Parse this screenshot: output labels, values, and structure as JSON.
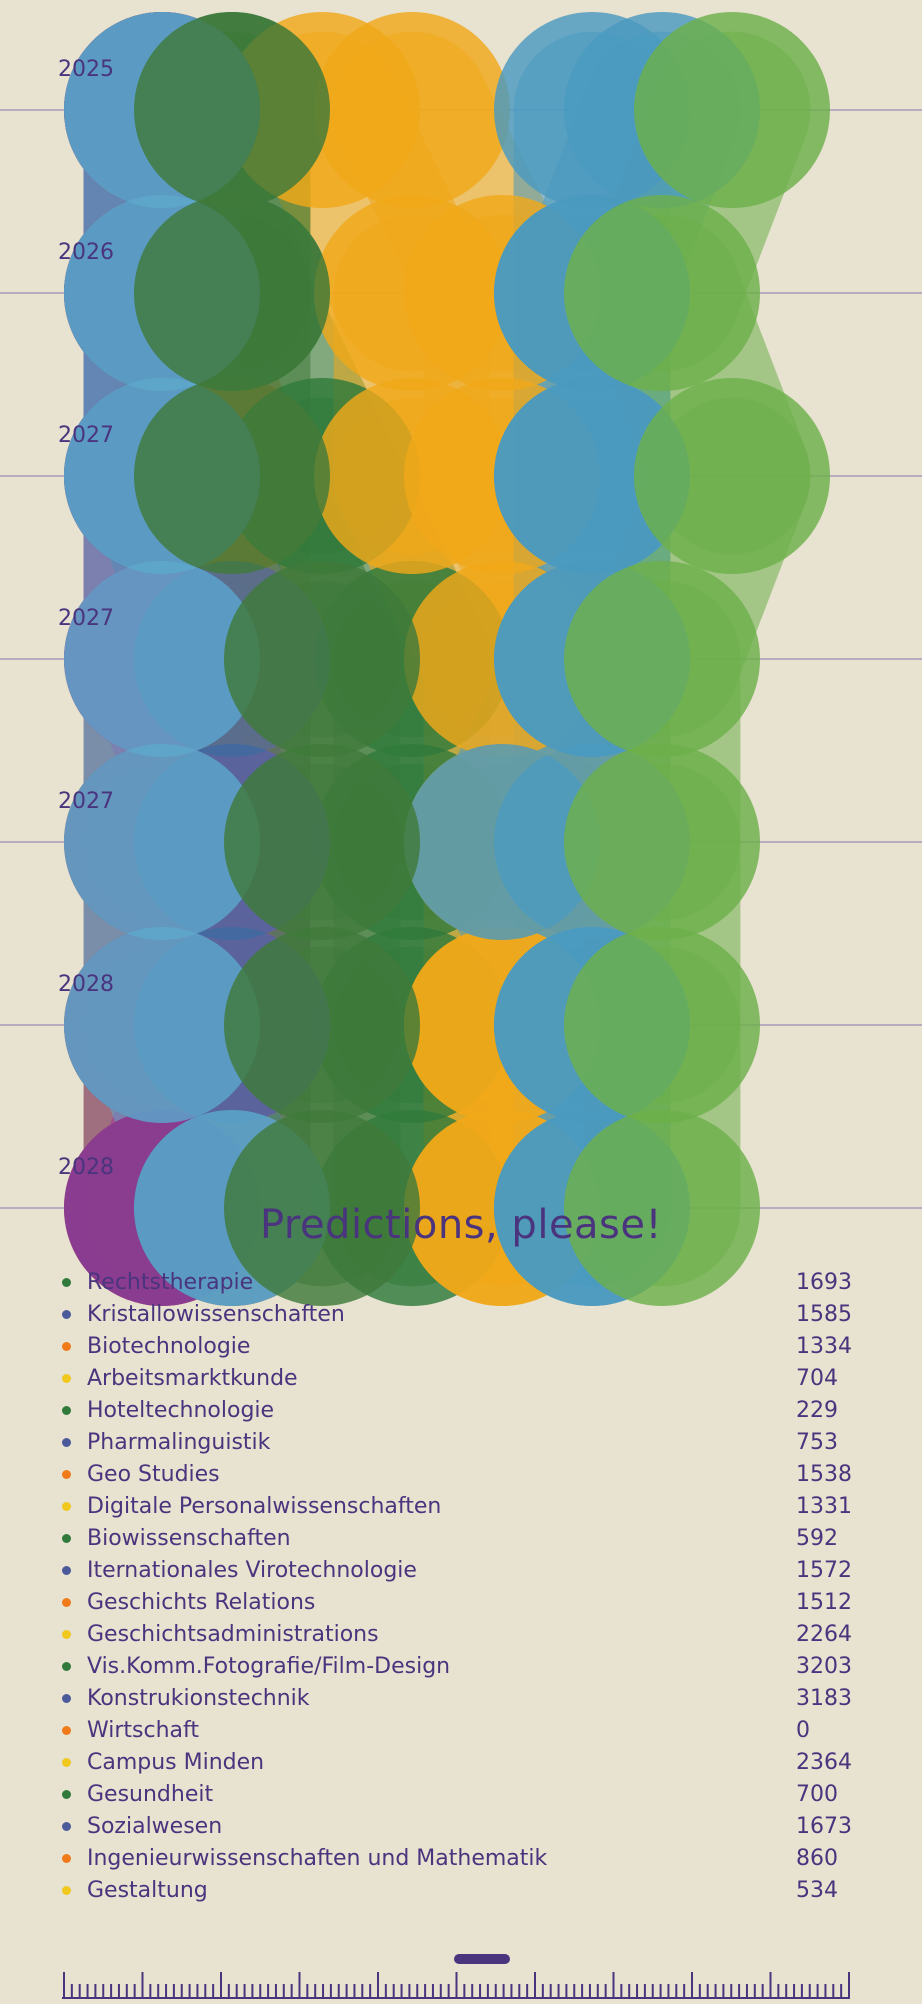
{
  "chart_data": {
    "type": "bump",
    "title": "",
    "years": [
      "2025",
      "2026",
      "2027",
      "2027",
      "2027",
      "2028",
      "2028"
    ],
    "legend_title": "Predictions, please!",
    "categories": [
      {
        "name": "Rechtstherapie",
        "value": 1693,
        "color": "#2f7a3a"
      },
      {
        "name": "Kristallowissenschaften",
        "value": 1585,
        "color": "#4a5a9a"
      },
      {
        "name": "Biotechnologie",
        "value": 1334,
        "color": "#f07a1a"
      },
      {
        "name": "Arbeitsmarktkunde",
        "value": 704,
        "color": "#f0c820"
      },
      {
        "name": "Hoteltechnologie",
        "value": 229,
        "color": "#2f7a3a"
      },
      {
        "name": "Pharmalinguistik",
        "value": 753,
        "color": "#4a5a9a"
      },
      {
        "name": "Geo Studies",
        "value": 1538,
        "color": "#f07a1a"
      },
      {
        "name": "Digitale Personalwissenschaften",
        "value": 1331,
        "color": "#f0c820"
      },
      {
        "name": "Biowissenschaften",
        "value": 592,
        "color": "#2f7a3a"
      },
      {
        "name": "Iternationales Virotechnologie",
        "value": 1572,
        "color": "#4a5a9a"
      },
      {
        "name": "Geschichts Relations",
        "value": 1512,
        "color": "#f07a1a"
      },
      {
        "name": "Geschichtsadministrations",
        "value": 2264,
        "color": "#f0c820"
      },
      {
        "name": "Vis.Komm.Fotografie/Film-Design",
        "value": 3203,
        "color": "#2f7a3a"
      },
      {
        "name": "Konstrukionstechnik",
        "value": 3183,
        "color": "#4a5a9a"
      },
      {
        "name": "Wirtschaft",
        "value": 0,
        "color": "#f07a1a"
      },
      {
        "name": "Campus Minden",
        "value": 2364,
        "color": "#f0c820"
      },
      {
        "name": "Gesundheit",
        "value": 700,
        "color": "#2f7a3a"
      },
      {
        "name": "Sozialwesen",
        "value": 1673,
        "color": "#4a5a9a"
      },
      {
        "name": "Ingenieurwissenschaften und Mathematik",
        "value": 860,
        "color": "#f07a1a"
      },
      {
        "name": "Gestaltung",
        "value": 534,
        "color": "#f0c820"
      }
    ]
  },
  "viz": {
    "bg_color": "#e8e2d0",
    "gridline_color": "#b8acc0",
    "text_color": "#4a347e"
  }
}
